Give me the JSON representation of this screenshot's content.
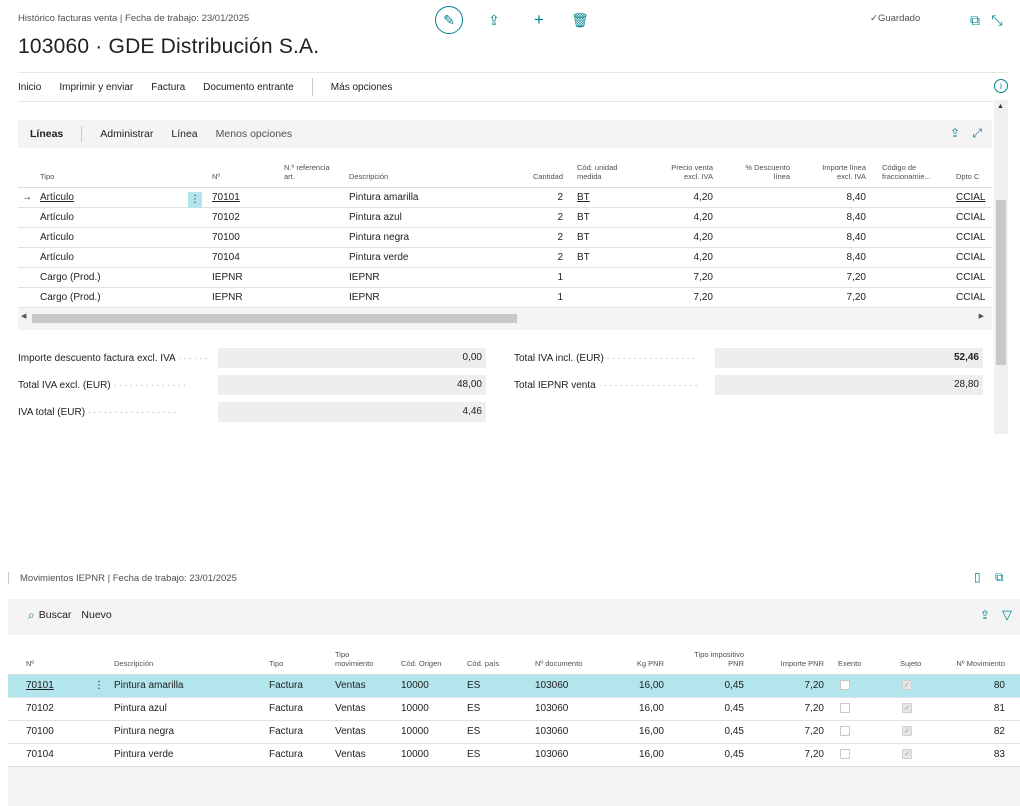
{
  "page": {
    "breadcrumb": "Histórico facturas venta | Fecha de trabajo: 23/01/2025",
    "title": "103060 · GDE Distribución S.A.",
    "saved_label": "Guardado"
  },
  "menu": {
    "items": [
      "Inicio",
      "Imprimir y enviar",
      "Factura",
      "Documento entrante"
    ],
    "more": "Más opciones"
  },
  "lines": {
    "title": "Líneas",
    "actions": [
      "Administrar",
      "Línea",
      "Menos opciones"
    ],
    "headers": {
      "tipo": "Tipo",
      "no": "Nº",
      "ref": "N.º referencia art.",
      "desc": "Descripción",
      "qty": "Cantidad",
      "uom": "Cód. unidad medida",
      "price": "Precio venta excl. IVA",
      "disc": "% Descuento línea",
      "amount": "Importe línea excl. IVA",
      "frac": "Código de fraccionamie...",
      "dept": "Dpto C"
    },
    "rows": [
      {
        "tipo": "Artículo",
        "no": "70101",
        "desc": "Pintura amarilla",
        "qty": "2",
        "uom": "BT",
        "price": "4,20",
        "amount": "8,40",
        "dept": "CCIAL"
      },
      {
        "tipo": "Artículo",
        "no": "70102",
        "desc": "Pintura azul",
        "qty": "2",
        "uom": "BT",
        "price": "4,20",
        "amount": "8,40",
        "dept": "CCIAL"
      },
      {
        "tipo": "Artículo",
        "no": "70100",
        "desc": "Pintura negra",
        "qty": "2",
        "uom": "BT",
        "price": "4,20",
        "amount": "8,40",
        "dept": "CCIAL"
      },
      {
        "tipo": "Artículo",
        "no": "70104",
        "desc": "Pintura verde",
        "qty": "2",
        "uom": "BT",
        "price": "4,20",
        "amount": "8,40",
        "dept": "CCIAL"
      },
      {
        "tipo": "Cargo (Prod.)",
        "no": "IEPNR",
        "desc": "IEPNR",
        "qty": "1",
        "uom": "",
        "price": "7,20",
        "amount": "7,20",
        "dept": "CCIAL"
      },
      {
        "tipo": "Cargo (Prod.)",
        "no": "IEPNR",
        "desc": "IEPNR",
        "qty": "1",
        "uom": "",
        "price": "7,20",
        "amount": "7,20",
        "dept": "CCIAL"
      }
    ]
  },
  "totals": {
    "discount_label": "Importe descuento factura excl. IVA",
    "discount_value": "0,00",
    "excl_label": "Total IVA excl. (EUR)",
    "excl_value": "48,00",
    "vat_label": "IVA total (EUR)",
    "vat_value": "4,46",
    "incl_label": "Total IVA incl. (EUR)",
    "incl_value": "52,46",
    "iepnr_label": "Total IEPNR venta",
    "iepnr_value": "28,80"
  },
  "movements": {
    "title": "Movimientos IEPNR | Fecha de trabajo: 23/01/2025",
    "search_label": "Buscar",
    "new_label": "Nuevo",
    "headers": {
      "no": "Nº",
      "desc": "Descripción",
      "tipo": "Tipo",
      "mov": "Tipo movimiento",
      "orig": "Cód. Origen",
      "pais": "Cód. país",
      "doc": "Nº documento",
      "kg": "Kg PNR",
      "imp": "Tipo impositivo PNR",
      "importe": "Importe PNR",
      "exento": "Exento",
      "sujeto": "Sujeto",
      "nmov": "Nº Movimiento"
    },
    "rows": [
      {
        "no": "70101",
        "desc": "Pintura amarilla",
        "tipo": "Factura",
        "mov": "Ventas",
        "orig": "10000",
        "pais": "ES",
        "doc": "103060",
        "kg": "16,00",
        "imp": "0,45",
        "importe": "7,20",
        "nmov": "80"
      },
      {
        "no": "70102",
        "desc": "Pintura azul",
        "tipo": "Factura",
        "mov": "Ventas",
        "orig": "10000",
        "pais": "ES",
        "doc": "103060",
        "kg": "16,00",
        "imp": "0,45",
        "importe": "7,20",
        "nmov": "81"
      },
      {
        "no": "70100",
        "desc": "Pintura negra",
        "tipo": "Factura",
        "mov": "Ventas",
        "orig": "10000",
        "pais": "ES",
        "doc": "103060",
        "kg": "16,00",
        "imp": "0,45",
        "importe": "7,20",
        "nmov": "82"
      },
      {
        "no": "70104",
        "desc": "Pintura verde",
        "tipo": "Factura",
        "mov": "Ventas",
        "orig": "10000",
        "pais": "ES",
        "doc": "103060",
        "kg": "16,00",
        "imp": "0,45",
        "importe": "7,20",
        "nmov": "83"
      }
    ]
  },
  "colors": {
    "accent": "#00838f",
    "selected_row": "#b3e5ec",
    "panel_bg": "#f4f4f4"
  }
}
